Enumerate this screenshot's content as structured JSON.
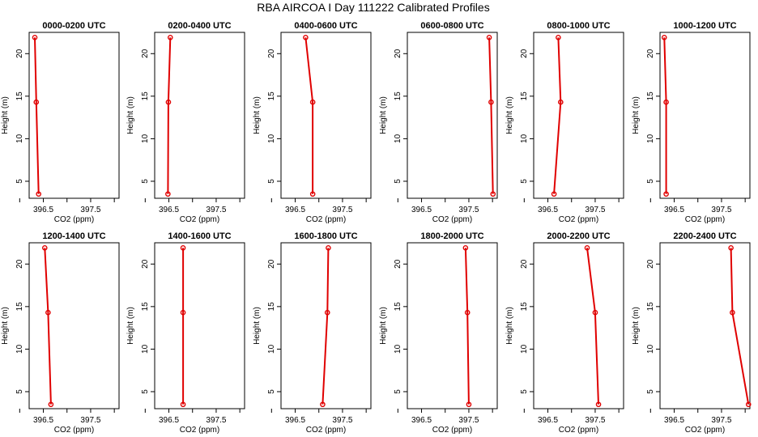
{
  "title": "RBA AIRCOA I  Day 111222  Calibrated Profiles",
  "chart_data": [
    {
      "type": "line",
      "title": "0000-0200 UTC",
      "xlabel": "CO2 (ppm)",
      "ylabel": "Height (m)",
      "xlim": [
        396.2,
        398.1
      ],
      "ylim": [
        3,
        22.5
      ],
      "xticks": [
        "396.5",
        "397.5"
      ],
      "yticks": [
        "5",
        "10",
        "15",
        "20"
      ],
      "series_color": "#e00000",
      "x": [
        396.4,
        396.35,
        396.32
      ],
      "y": [
        3.5,
        14.3,
        21.9
      ]
    },
    {
      "type": "line",
      "title": "0200-0400 UTC",
      "xlabel": "CO2 (ppm)",
      "ylabel": "Height (m)",
      "xlim": [
        396.2,
        398.1
      ],
      "ylim": [
        3,
        22.5
      ],
      "xticks": [
        "396.5",
        "397.5"
      ],
      "yticks": [
        "5",
        "10",
        "15",
        "20"
      ],
      "series_color": "#e00000",
      "x": [
        396.48,
        396.49,
        396.53
      ],
      "y": [
        3.5,
        14.3,
        21.9
      ]
    },
    {
      "type": "line",
      "title": "0400-0600 UTC",
      "xlabel": "CO2 (ppm)",
      "ylabel": "Height (m)",
      "xlim": [
        396.2,
        398.1
      ],
      "ylim": [
        3,
        22.5
      ],
      "xticks": [
        "396.5",
        "397.5"
      ],
      "yticks": [
        "5",
        "10",
        "15",
        "20"
      ],
      "series_color": "#e00000",
      "x": [
        396.87,
        396.87,
        396.72
      ],
      "y": [
        3.5,
        14.3,
        21.9
      ]
    },
    {
      "type": "line",
      "title": "0600-0800 UTC",
      "xlabel": "CO2 (ppm)",
      "ylabel": "Height (m)",
      "xlim": [
        396.2,
        398.1
      ],
      "ylim": [
        3,
        22.5
      ],
      "xticks": [
        "396.5",
        "397.5"
      ],
      "yticks": [
        "5",
        "10",
        "15",
        "20"
      ],
      "series_color": "#e00000",
      "x": [
        398.01,
        397.97,
        397.93
      ],
      "y": [
        3.5,
        14.3,
        21.9
      ]
    },
    {
      "type": "line",
      "title": "0800-1000 UTC",
      "xlabel": "CO2 (ppm)",
      "ylabel": "Height (m)",
      "xlim": [
        396.2,
        398.1
      ],
      "ylim": [
        3,
        22.5
      ],
      "xticks": [
        "396.5",
        "397.5"
      ],
      "yticks": [
        "5",
        "10",
        "15",
        "20"
      ],
      "series_color": "#e00000",
      "x": [
        396.63,
        396.77,
        396.72
      ],
      "y": [
        3.5,
        14.3,
        21.9
      ]
    },
    {
      "type": "line",
      "title": "1000-1200 UTC",
      "xlabel": "CO2 (ppm)",
      "ylabel": "Height (m)",
      "xlim": [
        396.2,
        398.1
      ],
      "ylim": [
        3,
        22.5
      ],
      "xticks": [
        "396.5",
        "397.5"
      ],
      "yticks": [
        "5",
        "10",
        "15",
        "20"
      ],
      "series_color": "#e00000",
      "x": [
        396.33,
        396.33,
        396.29
      ],
      "y": [
        3.5,
        14.3,
        21.9
      ]
    },
    {
      "type": "line",
      "title": "1200-1400 UTC",
      "xlabel": "CO2 (ppm)",
      "ylabel": "Height (m)",
      "xlim": [
        396.2,
        398.1
      ],
      "ylim": [
        3,
        22.5
      ],
      "xticks": [
        "396.5",
        "397.5"
      ],
      "yticks": [
        "5",
        "10",
        "15",
        "20"
      ],
      "series_color": "#e00000",
      "x": [
        396.66,
        396.6,
        396.53
      ],
      "y": [
        3.5,
        14.3,
        21.9
      ]
    },
    {
      "type": "line",
      "title": "1400-1600 UTC",
      "xlabel": "CO2 (ppm)",
      "ylabel": "Height (m)",
      "xlim": [
        396.2,
        398.1
      ],
      "ylim": [
        3,
        22.5
      ],
      "xticks": [
        "396.5",
        "397.5"
      ],
      "yticks": [
        "5",
        "10",
        "15",
        "20"
      ],
      "series_color": "#e00000",
      "x": [
        396.8,
        396.8,
        396.8
      ],
      "y": [
        3.5,
        14.3,
        21.9
      ]
    },
    {
      "type": "line",
      "title": "1600-1800 UTC",
      "xlabel": "CO2 (ppm)",
      "ylabel": "Height (m)",
      "xlim": [
        396.2,
        398.1
      ],
      "ylim": [
        3,
        22.5
      ],
      "xticks": [
        "396.5",
        "397.5"
      ],
      "yticks": [
        "5",
        "10",
        "15",
        "20"
      ],
      "series_color": "#e00000",
      "x": [
        397.08,
        397.18,
        397.2
      ],
      "y": [
        3.5,
        14.3,
        21.9
      ]
    },
    {
      "type": "line",
      "title": "1800-2000 UTC",
      "xlabel": "CO2 (ppm)",
      "ylabel": "Height (m)",
      "xlim": [
        396.2,
        398.1
      ],
      "ylim": [
        3,
        22.5
      ],
      "xticks": [
        "396.5",
        "397.5"
      ],
      "yticks": [
        "5",
        "10",
        "15",
        "20"
      ],
      "series_color": "#e00000",
      "x": [
        397.5,
        397.47,
        397.43
      ],
      "y": [
        3.5,
        14.3,
        21.9
      ]
    },
    {
      "type": "line",
      "title": "2000-2200 UTC",
      "xlabel": "CO2 (ppm)",
      "ylabel": "Height (m)",
      "xlim": [
        396.2,
        398.1
      ],
      "ylim": [
        3,
        22.5
      ],
      "xticks": [
        "396.5",
        "397.5"
      ],
      "yticks": [
        "5",
        "10",
        "15",
        "20"
      ],
      "series_color": "#e00000",
      "x": [
        397.57,
        397.5,
        397.33
      ],
      "y": [
        3.5,
        14.3,
        21.9
      ]
    },
    {
      "type": "line",
      "title": "2200-2400 UTC",
      "xlabel": "CO2 (ppm)",
      "ylabel": "Height (m)",
      "xlim": [
        396.2,
        398.1
      ],
      "ylim": [
        3,
        22.5
      ],
      "xticks": [
        "396.5",
        "397.5"
      ],
      "yticks": [
        "5",
        "10",
        "15",
        "20"
      ],
      "series_color": "#e00000",
      "x": [
        398.07,
        397.73,
        397.7
      ],
      "y": [
        3.5,
        14.3,
        21.9
      ]
    }
  ]
}
